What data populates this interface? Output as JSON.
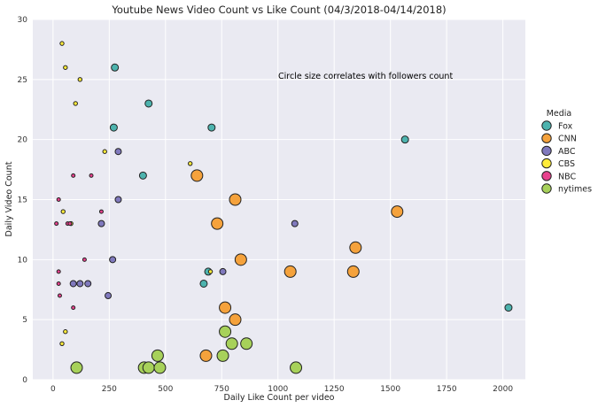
{
  "chart_data": {
    "type": "scatter",
    "title": "Youtube News Video Count vs Like Count (04/3/2018-04/14/2018)",
    "xlabel": "Daily Like Count per video",
    "ylabel": "Daily Video Count",
    "xlim": [
      -90,
      2100
    ],
    "ylim": [
      0,
      30
    ],
    "x_ticks": [
      0,
      250,
      500,
      750,
      1000,
      1250,
      1500,
      1750,
      2000
    ],
    "y_ticks": [
      0,
      5,
      10,
      15,
      20,
      25,
      30
    ],
    "grid": true,
    "annotation": "Circle size correlates with followers count",
    "legend": {
      "title": "Media",
      "position": "right",
      "entries": [
        "Fox",
        "CNN",
        "ABC",
        "CBS",
        "NBC",
        "nytimes"
      ]
    },
    "series": [
      {
        "name": "Fox",
        "color": "#4db3ae",
        "size": 4,
        "points": [
          [
            275,
            26
          ],
          [
            425,
            23
          ],
          [
            270,
            21
          ],
          [
            705,
            21
          ],
          [
            1565,
            20
          ],
          [
            400,
            17
          ],
          [
            690,
            9
          ],
          [
            670,
            8
          ],
          [
            2025,
            6
          ]
        ]
      },
      {
        "name": "CNN",
        "color": "#f5a23c",
        "size": 6.5,
        "points": [
          [
            640,
            17
          ],
          [
            810,
            15
          ],
          [
            1530,
            14
          ],
          [
            730,
            13
          ],
          [
            1345,
            11
          ],
          [
            835,
            10
          ],
          [
            1055,
            9
          ],
          [
            1335,
            9
          ],
          [
            765,
            6
          ],
          [
            810,
            5
          ],
          [
            680,
            2
          ]
        ]
      },
      {
        "name": "ABC",
        "color": "#8079bd",
        "size": 3.5,
        "points": [
          [
            290,
            19
          ],
          [
            290,
            15
          ],
          [
            215,
            13
          ],
          [
            1075,
            13
          ],
          [
            265,
            10
          ],
          [
            90,
            8
          ],
          [
            120,
            8
          ],
          [
            155,
            8
          ],
          [
            755,
            9
          ],
          [
            245,
            7
          ]
        ]
      },
      {
        "name": "CBS",
        "color": "#ffec3a",
        "size": 2.2,
        "points": [
          [
            40,
            28
          ],
          [
            55,
            26
          ],
          [
            120,
            25
          ],
          [
            100,
            23
          ],
          [
            230,
            19
          ],
          [
            610,
            18
          ],
          [
            45,
            14
          ],
          [
            80,
            13
          ],
          [
            700,
            9
          ],
          [
            55,
            4
          ],
          [
            40,
            3
          ]
        ]
      },
      {
        "name": "NBC",
        "color": "#e8428e",
        "size": 2,
        "points": [
          [
            90,
            17
          ],
          [
            170,
            17
          ],
          [
            25,
            15
          ],
          [
            215,
            14
          ],
          [
            15,
            13
          ],
          [
            65,
            13
          ],
          [
            75,
            13
          ],
          [
            140,
            10
          ],
          [
            25,
            9
          ],
          [
            25,
            8
          ],
          [
            30,
            7
          ],
          [
            90,
            6
          ]
        ]
      },
      {
        "name": "nytimes",
        "color": "#a7d15a",
        "size": 6.5,
        "points": [
          [
            765,
            4
          ],
          [
            795,
            3
          ],
          [
            860,
            3
          ],
          [
            465,
            2
          ],
          [
            755,
            2
          ],
          [
            105,
            1
          ],
          [
            405,
            1
          ],
          [
            425,
            1
          ],
          [
            475,
            1
          ],
          [
            1080,
            1
          ]
        ]
      }
    ]
  }
}
